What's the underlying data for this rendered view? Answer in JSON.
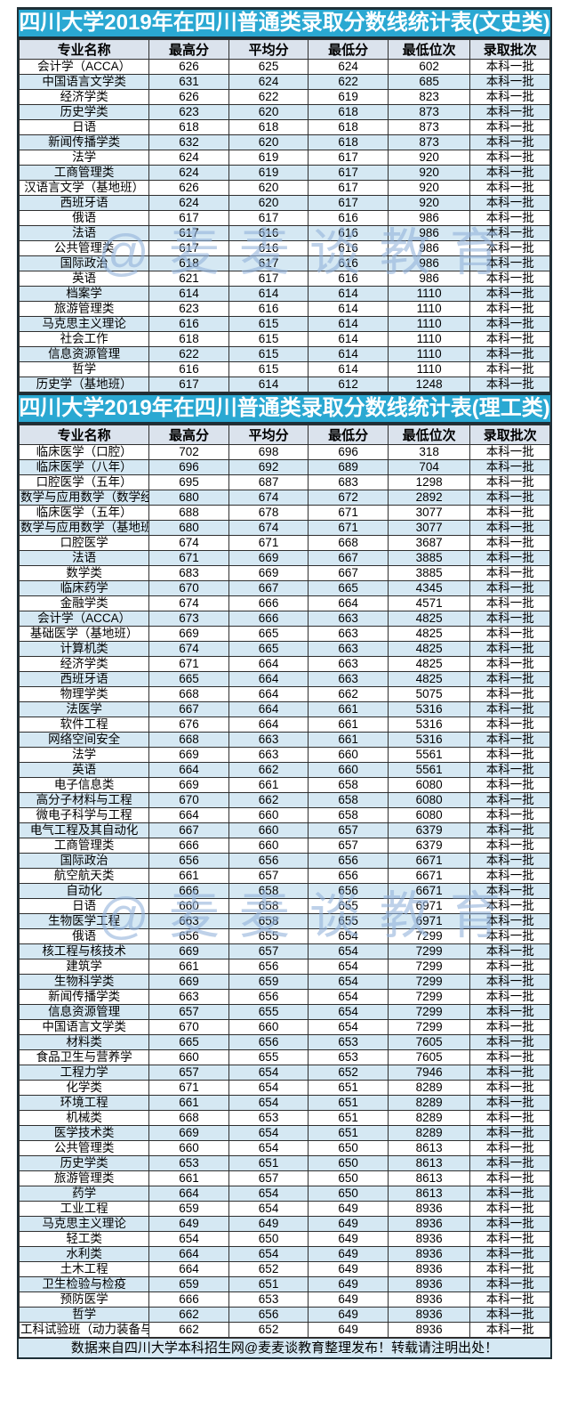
{
  "colors": {
    "title_bg": "#2aa8d2",
    "title_text": "#ffffff",
    "header_bg": "#dbe3ed",
    "row_bg": "#ffffff",
    "row_alt_bg": "#d5e8f3",
    "footer_bg": "#d5e8f3",
    "border_dark": "#1e2f37",
    "border_cell": "#2f2f2f",
    "watermark_color": "rgba(146,178,219,0.6)"
  },
  "watermark": {
    "text": "@麦麦谈教育"
  },
  "footer": {
    "text": "数据来自四川大学本科招生网@麦麦谈教育整理发布！转载请注明出处！"
  },
  "tables": [
    {
      "title": "四川大学2019年在四川普通类录取分数线统计表(文史类)",
      "headers": [
        "专业名称",
        "最高分",
        "平均分",
        "最低分",
        "最低位次",
        "录取批次"
      ],
      "rows": [
        [
          "会计学（ACCA）",
          "626",
          "625",
          "624",
          "602",
          "本科一批"
        ],
        [
          "中国语言文学类",
          "631",
          "624",
          "622",
          "685",
          "本科一批"
        ],
        [
          "经济学类",
          "626",
          "622",
          "619",
          "823",
          "本科一批"
        ],
        [
          "历史学类",
          "623",
          "620",
          "618",
          "873",
          "本科一批"
        ],
        [
          "日语",
          "618",
          "618",
          "618",
          "873",
          "本科一批"
        ],
        [
          "新闻传播学类",
          "632",
          "620",
          "618",
          "873",
          "本科一批"
        ],
        [
          "法学",
          "624",
          "619",
          "617",
          "920",
          "本科一批"
        ],
        [
          "工商管理类",
          "624",
          "619",
          "617",
          "920",
          "本科一批"
        ],
        [
          "汉语言文学（基地班）",
          "626",
          "620",
          "617",
          "920",
          "本科一批"
        ],
        [
          "西班牙语",
          "624",
          "620",
          "617",
          "920",
          "本科一批"
        ],
        [
          "俄语",
          "617",
          "617",
          "616",
          "986",
          "本科一批"
        ],
        [
          "法语",
          "617",
          "616",
          "616",
          "986",
          "本科一批"
        ],
        [
          "公共管理类",
          "617",
          "616",
          "616",
          "986",
          "本科一批"
        ],
        [
          "国际政治",
          "618",
          "617",
          "616",
          "986",
          "本科一批"
        ],
        [
          "英语",
          "621",
          "617",
          "616",
          "986",
          "本科一批"
        ],
        [
          "档案学",
          "614",
          "614",
          "614",
          "1110",
          "本科一批"
        ],
        [
          "旅游管理类",
          "623",
          "616",
          "614",
          "1110",
          "本科一批"
        ],
        [
          "马克思主义理论",
          "616",
          "615",
          "614",
          "1110",
          "本科一批"
        ],
        [
          "社会工作",
          "618",
          "615",
          "614",
          "1110",
          "本科一批"
        ],
        [
          "信息资源管理",
          "622",
          "615",
          "614",
          "1110",
          "本科一批"
        ],
        [
          "哲学",
          "616",
          "615",
          "614",
          "1110",
          "本科一批"
        ],
        [
          "历史学（基地班）",
          "617",
          "614",
          "612",
          "1248",
          "本科一批"
        ]
      ]
    },
    {
      "title": "四川大学2019年在四川普通类录取分数线统计表(理工类)",
      "headers": [
        "专业名称",
        "最高分",
        "平均分",
        "最低分",
        "最低位次",
        "录取批次"
      ],
      "rows": [
        [
          "临床医学（口腔）",
          "702",
          "698",
          "696",
          "318",
          "本科一批"
        ],
        [
          "临床医学（八年）",
          "696",
          "692",
          "689",
          "704",
          "本科一批"
        ],
        [
          "口腔医学（五年）",
          "695",
          "687",
          "683",
          "1298",
          "本科一批"
        ],
        [
          "数学与应用数学（数学经济",
          "680",
          "674",
          "672",
          "2892",
          "本科一批"
        ],
        [
          "临床医学（五年）",
          "688",
          "678",
          "671",
          "3077",
          "本科一批"
        ],
        [
          "数学与应用数学（基地班）",
          "680",
          "674",
          "671",
          "3077",
          "本科一批"
        ],
        [
          "口腔医学",
          "674",
          "671",
          "668",
          "3687",
          "本科一批"
        ],
        [
          "法语",
          "671",
          "669",
          "667",
          "3885",
          "本科一批"
        ],
        [
          "数学类",
          "683",
          "669",
          "667",
          "3885",
          "本科一批"
        ],
        [
          "临床药学",
          "670",
          "667",
          "665",
          "4345",
          "本科一批"
        ],
        [
          "金融学类",
          "674",
          "666",
          "664",
          "4571",
          "本科一批"
        ],
        [
          "会计学（ACCA）",
          "673",
          "666",
          "663",
          "4825",
          "本科一批"
        ],
        [
          "基础医学（基地班）",
          "669",
          "665",
          "663",
          "4825",
          "本科一批"
        ],
        [
          "计算机类",
          "674",
          "665",
          "663",
          "4825",
          "本科一批"
        ],
        [
          "经济学类",
          "671",
          "664",
          "663",
          "4825",
          "本科一批"
        ],
        [
          "西班牙语",
          "665",
          "664",
          "663",
          "4825",
          "本科一批"
        ],
        [
          "物理学类",
          "668",
          "664",
          "662",
          "5075",
          "本科一批"
        ],
        [
          "法医学",
          "667",
          "664",
          "661",
          "5316",
          "本科一批"
        ],
        [
          "软件工程",
          "676",
          "664",
          "661",
          "5316",
          "本科一批"
        ],
        [
          "网络空间安全",
          "668",
          "663",
          "661",
          "5316",
          "本科一批"
        ],
        [
          "法学",
          "669",
          "663",
          "660",
          "5561",
          "本科一批"
        ],
        [
          "英语",
          "664",
          "662",
          "660",
          "5561",
          "本科一批"
        ],
        [
          "电子信息类",
          "669",
          "661",
          "658",
          "6080",
          "本科一批"
        ],
        [
          "高分子材料与工程",
          "670",
          "662",
          "658",
          "6080",
          "本科一批"
        ],
        [
          "微电子科学与工程",
          "664",
          "660",
          "658",
          "6080",
          "本科一批"
        ],
        [
          "电气工程及其自动化",
          "667",
          "660",
          "657",
          "6379",
          "本科一批"
        ],
        [
          "工商管理类",
          "666",
          "660",
          "657",
          "6379",
          "本科一批"
        ],
        [
          "国际政治",
          "656",
          "656",
          "656",
          "6671",
          "本科一批"
        ],
        [
          "航空航天类",
          "661",
          "657",
          "656",
          "6671",
          "本科一批"
        ],
        [
          "自动化",
          "666",
          "658",
          "656",
          "6671",
          "本科一批"
        ],
        [
          "日语",
          "660",
          "658",
          "655",
          "6971",
          "本科一批"
        ],
        [
          "生物医学工程",
          "663",
          "658",
          "655",
          "6971",
          "本科一批"
        ],
        [
          "俄语",
          "656",
          "655",
          "654",
          "7299",
          "本科一批"
        ],
        [
          "核工程与核技术",
          "669",
          "657",
          "654",
          "7299",
          "本科一批"
        ],
        [
          "建筑学",
          "661",
          "656",
          "654",
          "7299",
          "本科一批"
        ],
        [
          "生物科学类",
          "669",
          "659",
          "654",
          "7299",
          "本科一批"
        ],
        [
          "新闻传播学类",
          "663",
          "656",
          "654",
          "7299",
          "本科一批"
        ],
        [
          "信息资源管理",
          "657",
          "655",
          "654",
          "7299",
          "本科一批"
        ],
        [
          "中国语言文学类",
          "670",
          "660",
          "654",
          "7299",
          "本科一批"
        ],
        [
          "材料类",
          "665",
          "656",
          "653",
          "7605",
          "本科一批"
        ],
        [
          "食品卫生与营养学",
          "660",
          "655",
          "653",
          "7605",
          "本科一批"
        ],
        [
          "工程力学",
          "657",
          "654",
          "652",
          "7946",
          "本科一批"
        ],
        [
          "化学类",
          "671",
          "654",
          "651",
          "8289",
          "本科一批"
        ],
        [
          "环境工程",
          "661",
          "654",
          "651",
          "8289",
          "本科一批"
        ],
        [
          "机械类",
          "668",
          "653",
          "651",
          "8289",
          "本科一批"
        ],
        [
          "医学技术类",
          "669",
          "654",
          "651",
          "8289",
          "本科一批"
        ],
        [
          "公共管理类",
          "660",
          "654",
          "650",
          "8613",
          "本科一批"
        ],
        [
          "历史学类",
          "653",
          "651",
          "650",
          "8613",
          "本科一批"
        ],
        [
          "旅游管理类",
          "661",
          "657",
          "650",
          "8613",
          "本科一批"
        ],
        [
          "药学",
          "664",
          "654",
          "650",
          "8613",
          "本科一批"
        ],
        [
          "工业工程",
          "659",
          "654",
          "649",
          "8936",
          "本科一批"
        ],
        [
          "马克思主义理论",
          "649",
          "649",
          "649",
          "8936",
          "本科一批"
        ],
        [
          "轻工类",
          "654",
          "650",
          "649",
          "8936",
          "本科一批"
        ],
        [
          "水利类",
          "664",
          "654",
          "649",
          "8936",
          "本科一批"
        ],
        [
          "土木工程",
          "664",
          "652",
          "649",
          "8936",
          "本科一批"
        ],
        [
          "卫生检验与检疫",
          "659",
          "651",
          "649",
          "8936",
          "本科一批"
        ],
        [
          "预防医学",
          "666",
          "653",
          "649",
          "8936",
          "本科一批"
        ],
        [
          "哲学",
          "662",
          "656",
          "649",
          "8936",
          "本科一批"
        ],
        [
          "工科试验班（动力装备与安",
          "662",
          "652",
          "649",
          "8936",
          "本科一批"
        ]
      ]
    }
  ]
}
